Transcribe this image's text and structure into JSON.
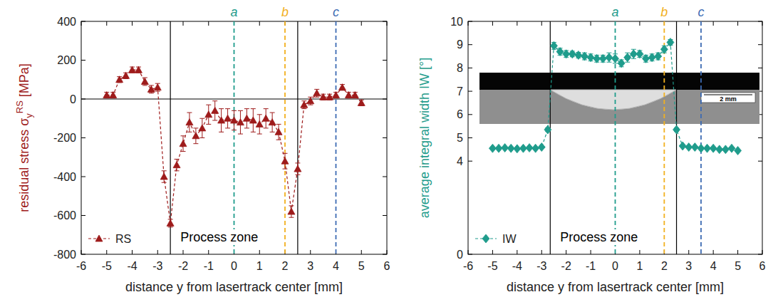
{
  "chart_data": [
    {
      "type": "line",
      "x_label": "distance y from lasertrack center [mm]",
      "y_label": {
        "text": "residual stress σ",
        "sub": "y",
        "sup": "RS",
        "unit": " [MPa]"
      },
      "xlim": [
        -6,
        6
      ],
      "xticks": [
        -6,
        -5,
        -4,
        -3,
        -2,
        -1,
        0,
        1,
        2,
        3,
        4,
        5,
        6
      ],
      "ylim": [
        -800,
        400
      ],
      "yticks": [
        -800,
        -600,
        -400,
        -200,
        0,
        200,
        400
      ],
      "legend": "lower left",
      "hlines": [
        0
      ],
      "zone": {
        "x": [
          -2.5,
          2.5
        ],
        "label": "Process zone"
      },
      "vlines": [
        {
          "x": 0,
          "label": "a",
          "color": "#1f9c8c",
          "line_style": "dashed"
        },
        {
          "x": 2,
          "label": "b",
          "color": "#f2b01e",
          "line_style": "dashed"
        },
        {
          "x": 4,
          "label": "c",
          "color": "#3d6bb3",
          "line_style": "dashed"
        }
      ],
      "series": [
        {
          "name": "RS",
          "color": "#9e1b1b",
          "marker": "triangle",
          "line_style": "dashed",
          "x": [
            -5,
            -4.75,
            -4.5,
            -4.25,
            -4,
            -3.75,
            -3.5,
            -3.25,
            -3,
            -2.75,
            -2.5,
            -2.25,
            -2,
            -1.75,
            -1.5,
            -1.25,
            -1,
            -0.75,
            -0.5,
            -0.25,
            0,
            0.25,
            0.5,
            0.75,
            1,
            1.25,
            1.5,
            1.75,
            2,
            2.25,
            2.5,
            2.75,
            3,
            3.25,
            3.5,
            3.75,
            4,
            4.25,
            4.5,
            4.75,
            5
          ],
          "values": [
            20,
            20,
            100,
            120,
            150,
            150,
            90,
            50,
            60,
            -400,
            -640,
            -340,
            -230,
            -120,
            -190,
            -150,
            -80,
            -60,
            -110,
            -100,
            -110,
            -120,
            -100,
            -110,
            -130,
            -100,
            -120,
            -170,
            -320,
            -580,
            -360,
            -30,
            -10,
            30,
            10,
            10,
            20,
            60,
            20,
            20,
            -20
          ],
          "errors": [
            15,
            15,
            15,
            15,
            15,
            15,
            20,
            20,
            20,
            30,
            20,
            30,
            40,
            50,
            40,
            50,
            50,
            50,
            60,
            50,
            50,
            60,
            50,
            60,
            50,
            50,
            50,
            40,
            40,
            30,
            30,
            20,
            20,
            20,
            15,
            15,
            15,
            15,
            15,
            15,
            15
          ]
        }
      ]
    },
    {
      "type": "line",
      "x_label": "distance y from lasertrack center [mm]",
      "y_label": {
        "text": "average integral width IW [°]"
      },
      "xlim": [
        -6,
        6
      ],
      "xticks": [
        -6,
        -5,
        -4,
        -3,
        -2,
        -1,
        0,
        1,
        2,
        3,
        4,
        5,
        6
      ],
      "ylim": [
        0,
        10
      ],
      "yticks": [
        0,
        4,
        5,
        6,
        7,
        8,
        9,
        10
      ],
      "legend": "lower left",
      "zone": {
        "x": [
          -2.65,
          2.5
        ],
        "label": "Process zone"
      },
      "vlines": [
        {
          "x": 0,
          "label": "a",
          "color": "#1f9c8c",
          "line_style": "dashed"
        },
        {
          "x": 2,
          "label": "b",
          "color": "#f2b01e",
          "line_style": "dashed"
        },
        {
          "x": 3.5,
          "label": "c",
          "color": "#3d6bb3",
          "line_style": "dashed"
        }
      ],
      "inset": {
        "scale_label": "2 mm"
      },
      "series": [
        {
          "name": "IW",
          "color": "#1f9c8c",
          "marker": "diamond",
          "line_style": "dashed",
          "x": [
            -5,
            -4.75,
            -4.5,
            -4.25,
            -4,
            -3.75,
            -3.5,
            -3.25,
            -3,
            -2.75,
            -2.5,
            -2.25,
            -2,
            -1.75,
            -1.5,
            -1.25,
            -1,
            -0.75,
            -0.5,
            -0.25,
            0,
            0.25,
            0.5,
            0.75,
            1,
            1.25,
            1.5,
            1.75,
            2,
            2.25,
            2.5,
            2.75,
            3,
            3.25,
            3.5,
            3.75,
            4,
            4.25,
            4.5,
            4.75,
            5
          ],
          "values": [
            4.55,
            4.55,
            4.57,
            4.55,
            4.53,
            4.55,
            4.57,
            4.55,
            4.6,
            5.35,
            8.95,
            8.7,
            8.6,
            8.6,
            8.55,
            8.5,
            8.45,
            8.4,
            8.4,
            8.45,
            8.4,
            8.2,
            8.45,
            8.6,
            8.6,
            8.4,
            8.45,
            8.5,
            8.8,
            9.1,
            5.35,
            4.65,
            4.6,
            4.6,
            4.55,
            4.55,
            4.55,
            4.5,
            4.5,
            4.55,
            4.45
          ],
          "errors": [
            0.03,
            0.03,
            0.03,
            0.03,
            0.03,
            0.03,
            0.03,
            0.03,
            0.03,
            0.08,
            0.15,
            0.15,
            0.15,
            0.12,
            0.12,
            0.15,
            0.15,
            0.15,
            0.15,
            0.2,
            0.2,
            0.15,
            0.2,
            0.2,
            0.15,
            0.15,
            0.15,
            0.15,
            0.15,
            0.12,
            0.08,
            0.05,
            0.03,
            0.03,
            0.03,
            0.03,
            0.03,
            0.03,
            0.03,
            0.03,
            0.03
          ]
        }
      ]
    }
  ]
}
